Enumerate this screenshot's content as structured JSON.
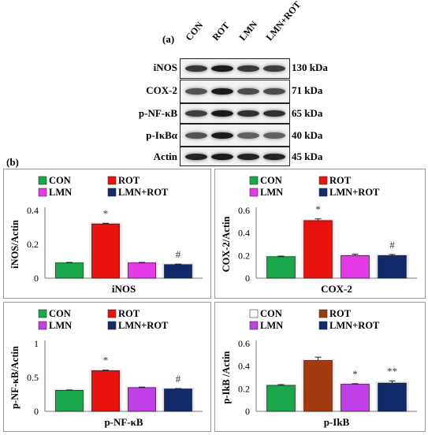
{
  "figure": {
    "label_a": "(a)",
    "label_b": "(b)"
  },
  "blot": {
    "lanes": [
      "CON",
      "ROT",
      "LMN",
      "LMN+ROT"
    ],
    "rows": [
      {
        "name": "iNOS",
        "kda": "130 kDa",
        "intensity": [
          0.75,
          0.95,
          0.75,
          0.7
        ]
      },
      {
        "name": "COX-2",
        "kda": "71 kDa",
        "intensity": [
          0.55,
          0.95,
          0.6,
          0.6
        ]
      },
      {
        "name": "p-NF-κB",
        "kda": "65 kDa",
        "intensity": [
          0.7,
          0.95,
          0.8,
          0.8
        ]
      },
      {
        "name": "p-IκBα",
        "kda": "40 kDa",
        "intensity": [
          0.55,
          0.95,
          0.45,
          0.45
        ]
      },
      {
        "name": "Actin",
        "kda": "45 kDa",
        "intensity": [
          0.9,
          0.95,
          0.9,
          0.9
        ]
      }
    ]
  },
  "chart_data": [
    {
      "type": "bar",
      "title": "iNOS",
      "ylabel": "iNOS/Actin",
      "ylim": [
        0,
        0.4
      ],
      "yticks": [
        "0",
        "0.2",
        "0.4"
      ],
      "categories": [
        "CON",
        "ROT",
        "LMN",
        "LMN+ROT"
      ],
      "values": [
        0.09,
        0.32,
        0.09,
        0.08
      ],
      "errors": [
        0.003,
        0.004,
        0.003,
        0.003
      ],
      "annotations": [
        "",
        "*",
        "",
        "#"
      ],
      "legend": [
        "CON",
        "ROT",
        "LMN",
        "LMN+ROT"
      ],
      "colors": [
        "#1aa84a",
        "#e8130e",
        "#e43ae8",
        "#102a6a"
      ]
    },
    {
      "type": "bar",
      "title": "COX-2",
      "ylabel": "COX-2/Actin",
      "ylim": [
        0,
        0.6
      ],
      "yticks": [
        "0",
        "0.2",
        "0.4",
        "0.6"
      ],
      "categories": [
        "CON",
        "ROT",
        "LMN",
        "LMN+ROT"
      ],
      "values": [
        0.19,
        0.51,
        0.2,
        0.2
      ],
      "errors": [
        0.005,
        0.015,
        0.012,
        0.01
      ],
      "annotations": [
        "",
        "*",
        "",
        "#"
      ],
      "legend": [
        "CON",
        "ROT",
        "LMN",
        "LMN+ROT"
      ],
      "colors": [
        "#1aa84a",
        "#e8130e",
        "#e43ae8",
        "#102a6a"
      ]
    },
    {
      "type": "bar",
      "title": "p-NF-κB",
      "ylabel": "p-NF-κB/Actin",
      "ylim": [
        0,
        1
      ],
      "yticks": [
        "0",
        "0.5",
        "1"
      ],
      "categories": [
        "CON",
        "ROT",
        "LMN",
        "LMN+ROT"
      ],
      "values": [
        0.31,
        0.6,
        0.35,
        0.33
      ],
      "errors": [
        0.006,
        0.008,
        0.008,
        0.006
      ],
      "annotations": [
        "",
        "*",
        "",
        "#"
      ],
      "legend": [
        "CON",
        "ROT",
        "LMN",
        "LMN+ROT"
      ],
      "colors": [
        "#1aa84a",
        "#e8130e",
        "#c03fe6",
        "#102a6a"
      ]
    },
    {
      "type": "bar",
      "title": "p-IkB",
      "ylabel": "p-IkB /Actin",
      "ylim": [
        0,
        0.6
      ],
      "yticks": [
        "0",
        "0.2",
        "0.4",
        "0.6"
      ],
      "categories": [
        "CON",
        "ROT",
        "LMN",
        "LMN+ROT"
      ],
      "values": [
        0.23,
        0.45,
        0.24,
        0.25
      ],
      "errors": [
        0.007,
        0.03,
        0.005,
        0.02
      ],
      "annotations": [
        "",
        "",
        "*",
        "**"
      ],
      "legend": [
        "CON",
        "ROT",
        "LMN",
        "LMN+ROT"
      ],
      "colors": [
        "#1aa84a",
        "#a23a10",
        "#c03fe6",
        "#102a6a"
      ],
      "legend_colors": [
        "#ffffff",
        "#a23a10",
        "#c03fe6",
        "#102a6a"
      ]
    }
  ]
}
